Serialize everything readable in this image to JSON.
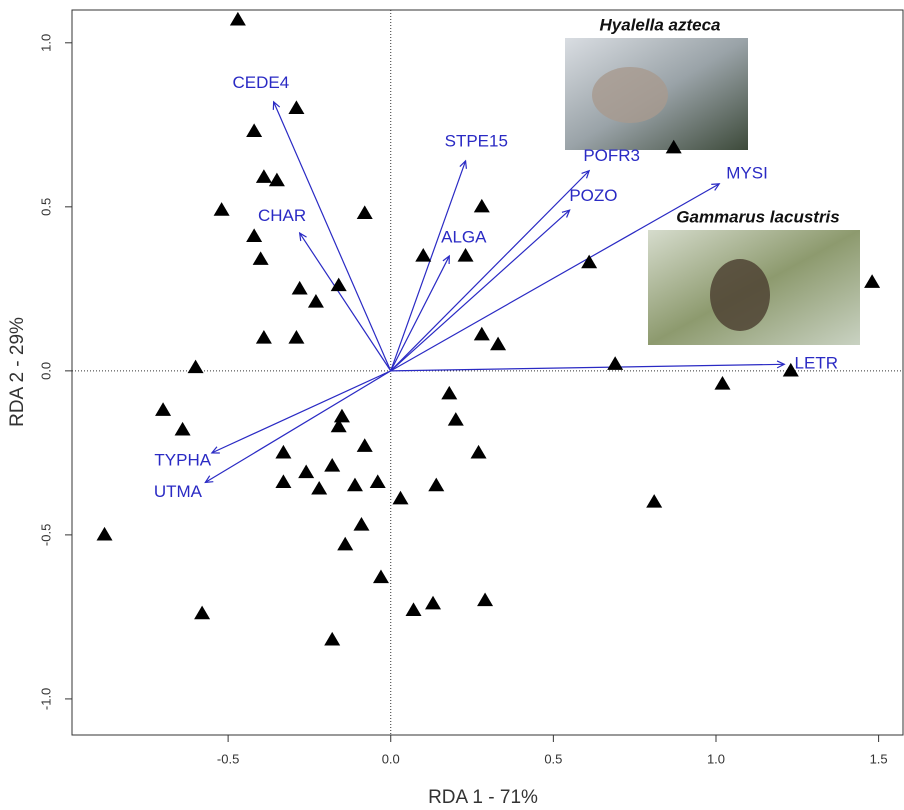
{
  "chart_data": {
    "type": "biplot",
    "x_label": "RDA 1 - 71%",
    "y_label": "RDA 2 - 29%",
    "xlim": [
      -0.98,
      1.575
    ],
    "ylim": [
      -1.11,
      1.1
    ],
    "xticks": [
      -0.5,
      {
        "value": 0,
        "label": "0.0"
      },
      0.5,
      {
        "value": 1,
        "label": "1.0"
      },
      1.5
    ],
    "yticks": [
      {
        "value": -1,
        "label": "-1.0"
      },
      -0.5,
      {
        "value": 0,
        "label": "0.0"
      },
      0.5,
      {
        "value": 1,
        "label": "1.0"
      }
    ],
    "zero_lines": true,
    "point_color": "#000000",
    "vector_color": "#2a2ac4",
    "points": {
      "x": [
        -0.47,
        -0.29,
        -0.42,
        -0.39,
        -0.35,
        -0.52,
        -0.08,
        -0.42,
        -0.4,
        -0.28,
        -0.16,
        -0.23,
        -0.39,
        -0.29,
        -0.6,
        0.1,
        0.23,
        0.28,
        0.28,
        0.33,
        0.87,
        0.61,
        0.69,
        1.23,
        1.02,
        1.48,
        -0.7,
        -0.64,
        -0.15,
        -0.16,
        0.18,
        0.2,
        -0.33,
        -0.08,
        0.27,
        -0.26,
        -0.18,
        -0.33,
        -0.22,
        -0.11,
        -0.04,
        0.03,
        0.14,
        -0.09,
        -0.14,
        -0.88,
        -0.03,
        0.07,
        0.13,
        0.29,
        0.81,
        -0.58,
        -0.18
      ],
      "y": [
        1.07,
        0.8,
        0.73,
        0.59,
        0.58,
        0.49,
        0.48,
        0.41,
        0.34,
        0.25,
        0.26,
        0.21,
        0.1,
        0.1,
        0.01,
        0.35,
        0.35,
        0.5,
        0.11,
        0.08,
        0.68,
        0.33,
        0.02,
        0.0,
        -0.04,
        0.27,
        -0.12,
        -0.18,
        -0.14,
        -0.17,
        -0.07,
        -0.15,
        -0.25,
        -0.23,
        -0.25,
        -0.31,
        -0.29,
        -0.34,
        -0.36,
        -0.35,
        -0.34,
        -0.39,
        -0.35,
        -0.47,
        -0.53,
        -0.5,
        -0.63,
        -0.73,
        -0.71,
        -0.7,
        -0.4,
        -0.74,
        -0.82
      ]
    },
    "vectors": [
      {
        "name": "CEDE4",
        "x": -0.36,
        "y": 0.82
      },
      {
        "name": "CHAR",
        "x": -0.28,
        "y": 0.42
      },
      {
        "name": "STPE15",
        "x": 0.23,
        "y": 0.64
      },
      {
        "name": "ALGA",
        "x": 0.18,
        "y": 0.35
      },
      {
        "name": "POFR3",
        "x": 0.61,
        "y": 0.61
      },
      {
        "name": "POZO",
        "x": 0.55,
        "y": 0.49
      },
      {
        "name": "MYSI",
        "x": 1.01,
        "y": 0.57
      },
      {
        "name": "LETR",
        "x": 1.21,
        "y": 0.02
      },
      {
        "name": "TYPHA",
        "x": -0.55,
        "y": -0.25
      },
      {
        "name": "UTMA",
        "x": -0.57,
        "y": -0.34
      }
    ],
    "annotations": [
      "Hyalella azteca",
      "Gammarus lacustris"
    ]
  }
}
